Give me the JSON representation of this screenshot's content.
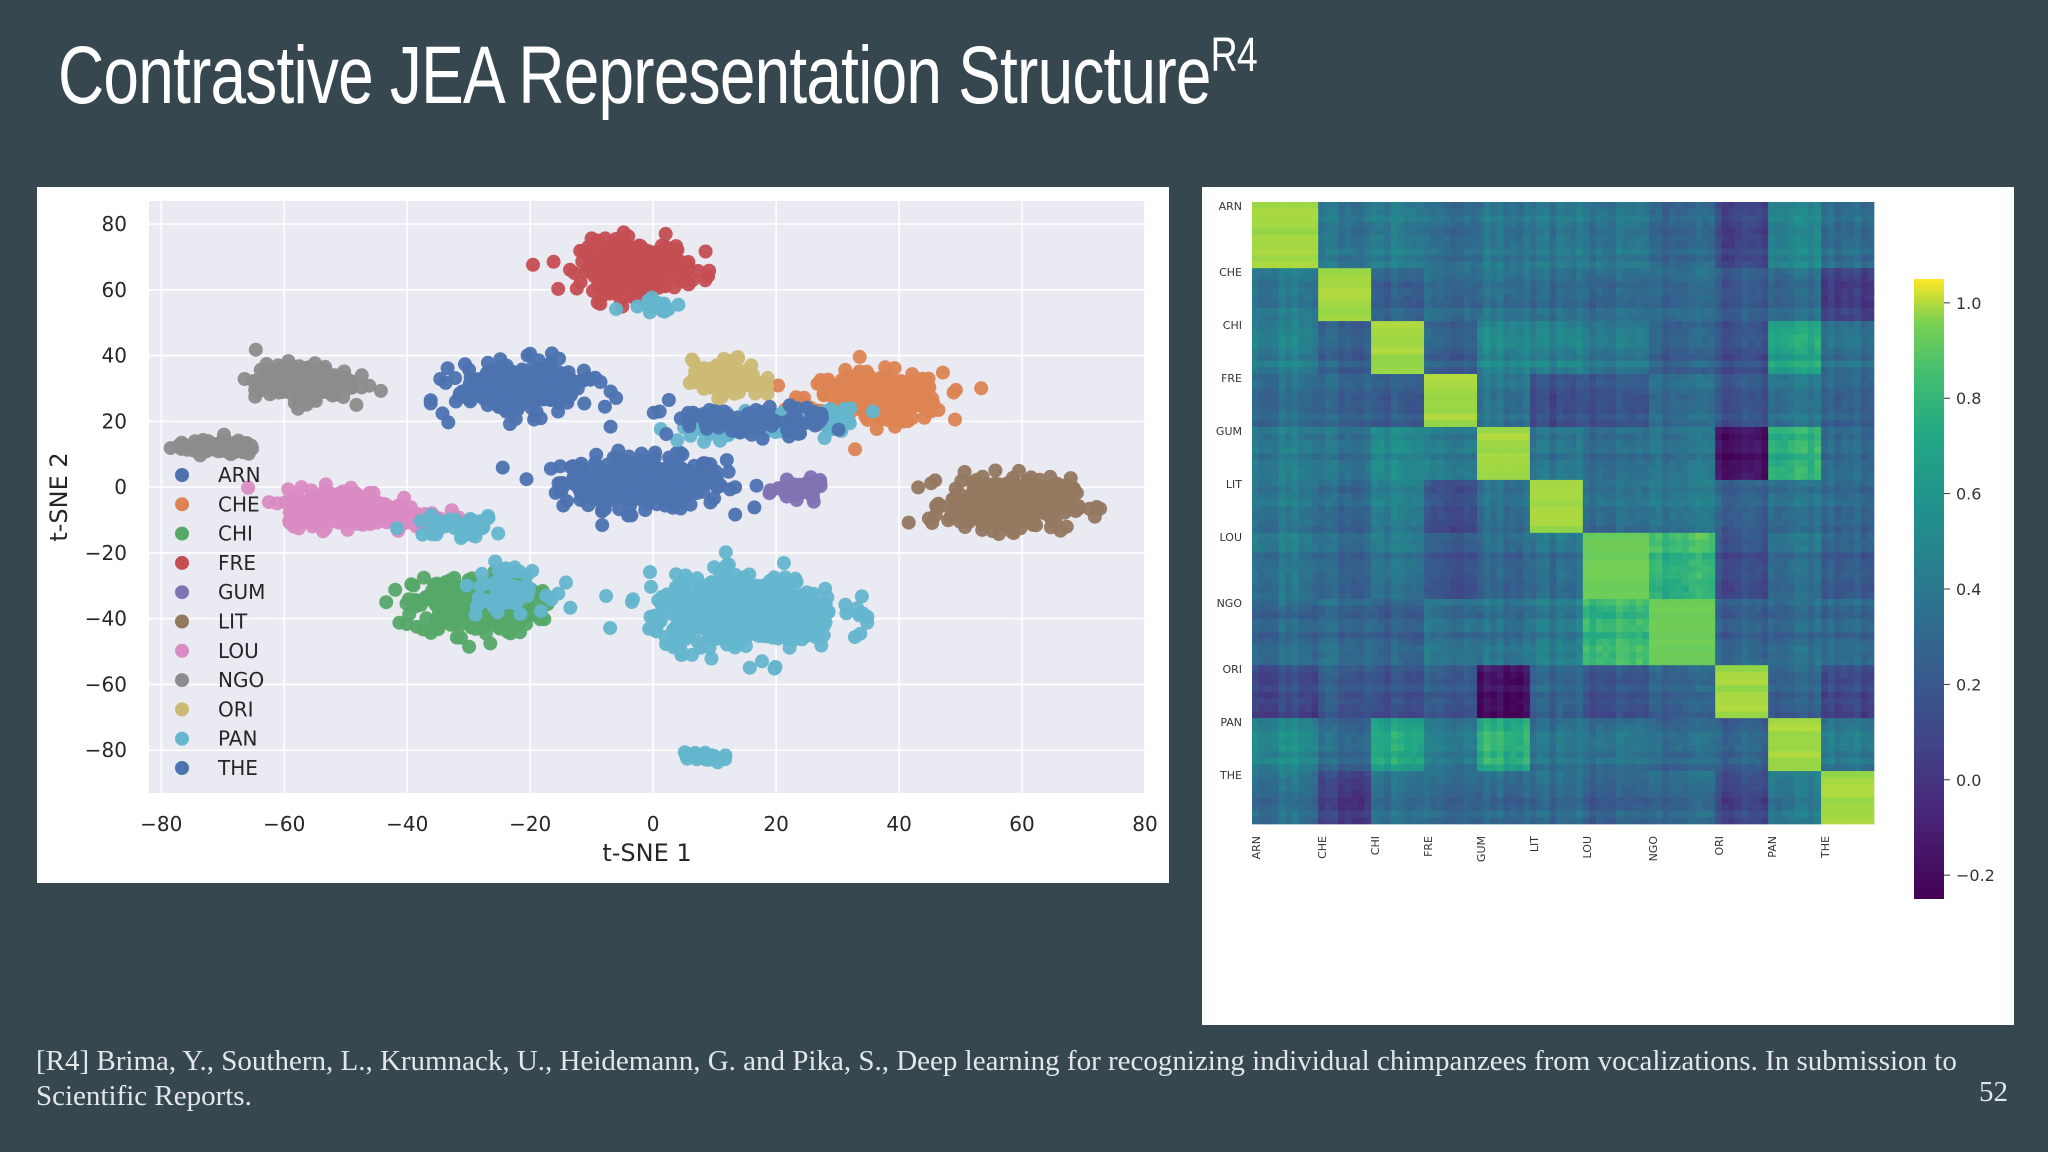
{
  "slide": {
    "title": "Contrastive JEA Representation Structure",
    "title_superscript": "R4",
    "citation": "[R4] Brima, Y., Southern, L., Krumnack, U., Heidemann, G. and Pika, S., Deep learning for recognizing individual chimpanzees from vocalizations. In submission to Scientific Reports.",
    "page_number": "52"
  },
  "chart_data": [
    {
      "type": "scatter",
      "xlabel": "t-SNE 1",
      "ylabel": "t-SNE 2",
      "xlim": [
        -82,
        80
      ],
      "ylim": [
        -93,
        87
      ],
      "xticks": [
        -80,
        -60,
        -40,
        -20,
        0,
        20,
        40,
        60,
        80
      ],
      "yticks": [
        80,
        60,
        40,
        20,
        0,
        -20,
        -40,
        -60,
        -80
      ],
      "grid": true,
      "legend_position": "left",
      "series": [
        {
          "name": "ARN",
          "color": "#4c72b0",
          "clusters": [
            [
              -1.5,
              1.5,
              12,
              7,
              360
            ]
          ]
        },
        {
          "name": "CHE",
          "color": "#dd8452",
          "clusters": [
            [
              36,
              27,
              10,
              7,
              280
            ]
          ]
        },
        {
          "name": "CHI",
          "color": "#55a868",
          "clusters": [
            [
              -29,
              -36,
              9,
              8,
              300
            ]
          ]
        },
        {
          "name": "FRE",
          "color": "#c44e52",
          "clusters": [
            [
              -3,
              67,
              8,
              7,
              320
            ]
          ]
        },
        {
          "name": "GUM",
          "color": "#8172b3",
          "clusters": [
            [
              24,
              -1,
              3.5,
              2.5,
              60
            ]
          ]
        },
        {
          "name": "LIT",
          "color": "#937860",
          "clusters": [
            [
              58,
              -5,
              9,
              7,
              340
            ]
          ]
        },
        {
          "name": "LOU",
          "color": "#da8bc3",
          "clusters": [
            [
              -51,
              -6,
              8,
              5,
              300
            ],
            [
              -38,
              -10,
              6,
              2,
              60
            ]
          ]
        },
        {
          "name": "NGO",
          "color": "#8c8c8c",
          "clusters": [
            [
              -57,
              32,
              7,
              5,
              220
            ],
            [
              -71,
              12,
              6,
              2,
              80
            ]
          ]
        },
        {
          "name": "ORI",
          "color": "#ccb974",
          "clusters": [
            [
              12,
              33,
              5,
              5,
              110
            ]
          ]
        },
        {
          "name": "PAN",
          "color": "#64b5cd",
          "clusters": [
            [
              15,
              -38,
              14,
              10,
              480
            ],
            [
              8,
              -82,
              3,
              2,
              30
            ],
            [
              -32,
              -12,
              7,
              3,
              40
            ],
            [
              0,
              56,
              4,
              3,
              20
            ],
            [
              -24,
              -31,
              6,
              6,
              60
            ],
            [
              12,
              18,
              7,
              4,
              40
            ],
            [
              28,
              20,
              6,
              4,
              40
            ]
          ]
        },
        {
          "name": "THE",
          "color": "#4c72b0",
          "clusters": [
            [
              -21,
              30,
              10,
              7,
              280
            ],
            [
              15,
              20,
              12,
              4,
              90
            ]
          ]
        }
      ]
    },
    {
      "type": "heatmap",
      "categories": [
        "ARN",
        "CHE",
        "CHI",
        "FRE",
        "GUM",
        "LIT",
        "LOU",
        "NGO",
        "ORI",
        "PAN",
        "THE"
      ],
      "block_sizes": [
        10,
        8,
        8,
        8,
        8,
        8,
        10,
        10,
        8,
        8,
        8
      ],
      "colorbar": {
        "min": -0.25,
        "max": 1.05,
        "ticks": [
          1.0,
          0.8,
          0.6,
          0.4,
          0.2,
          0.0,
          -0.2
        ],
        "tick_labels": [
          "1.0",
          "0.8",
          "0.6",
          "0.4",
          "0.2",
          "0.0",
          "−0.2"
        ]
      },
      "values": [
        [
          1.0,
          0.4,
          0.45,
          0.35,
          0.4,
          0.4,
          0.4,
          0.3,
          0.1,
          0.5,
          0.35
        ],
        [
          0.4,
          1.0,
          0.25,
          0.3,
          0.35,
          0.3,
          0.3,
          0.3,
          0.2,
          0.3,
          0.05
        ],
        [
          0.45,
          0.25,
          1.0,
          0.25,
          0.5,
          0.45,
          0.4,
          0.25,
          0.15,
          0.7,
          0.35
        ],
        [
          0.35,
          0.3,
          0.25,
          1.0,
          0.4,
          0.15,
          0.2,
          0.35,
          0.2,
          0.4,
          0.3
        ],
        [
          0.4,
          0.35,
          0.5,
          0.4,
          1.0,
          0.35,
          0.3,
          0.35,
          -0.2,
          0.75,
          0.3
        ],
        [
          0.4,
          0.3,
          0.45,
          0.15,
          0.35,
          1.0,
          0.35,
          0.4,
          0.25,
          0.35,
          0.3
        ],
        [
          0.4,
          0.3,
          0.4,
          0.2,
          0.3,
          0.35,
          0.95,
          0.8,
          0.15,
          0.35,
          0.25
        ],
        [
          0.3,
          0.3,
          0.25,
          0.35,
          0.35,
          0.4,
          0.8,
          0.95,
          0.25,
          0.3,
          0.3
        ],
        [
          0.1,
          0.2,
          0.15,
          0.2,
          -0.2,
          0.25,
          0.15,
          0.25,
          1.0,
          0.25,
          0.1
        ],
        [
          0.5,
          0.3,
          0.7,
          0.4,
          0.75,
          0.35,
          0.35,
          0.3,
          0.25,
          1.0,
          0.4
        ],
        [
          0.35,
          0.05,
          0.35,
          0.3,
          0.3,
          0.3,
          0.25,
          0.3,
          0.1,
          0.4,
          1.0
        ]
      ]
    }
  ]
}
